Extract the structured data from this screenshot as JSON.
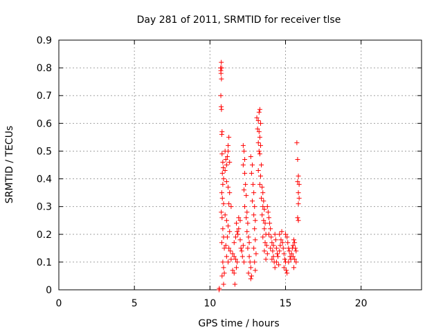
{
  "chart_data": {
    "type": "scatter",
    "title": "Day 281 of 2011, SRMTID for receiver tlse",
    "xlabel": "GPS time / hours",
    "ylabel": "SRMTID / TECUs",
    "xlim": [
      0,
      24
    ],
    "ylim": [
      0,
      0.9
    ],
    "xticks": [
      0,
      5,
      10,
      15,
      20
    ],
    "yticks": [
      0,
      0.1,
      0.2,
      0.3,
      0.4,
      0.5,
      0.6,
      0.7,
      0.8,
      0.9
    ],
    "grid": true,
    "marker": "+",
    "series": [
      {
        "name": "SRMTID",
        "color": "#ff0000",
        "points": [
          [
            10.6,
            0.0
          ],
          [
            10.62,
            0.005
          ],
          [
            10.7,
            0.8
          ],
          [
            10.72,
            0.79
          ],
          [
            10.75,
            0.82
          ],
          [
            10.78,
            0.8
          ],
          [
            10.73,
            0.78
          ],
          [
            10.76,
            0.76
          ],
          [
            10.72,
            0.7
          ],
          [
            10.74,
            0.66
          ],
          [
            10.76,
            0.65
          ],
          [
            10.8,
            0.57
          ],
          [
            10.78,
            0.56
          ],
          [
            10.8,
            0.49
          ],
          [
            10.85,
            0.46
          ],
          [
            10.88,
            0.44
          ],
          [
            10.82,
            0.42
          ],
          [
            10.9,
            0.4
          ],
          [
            10.85,
            0.38
          ],
          [
            10.78,
            0.35
          ],
          [
            10.82,
            0.33
          ],
          [
            10.9,
            0.31
          ],
          [
            10.75,
            0.28
          ],
          [
            10.8,
            0.26
          ],
          [
            10.85,
            0.22
          ],
          [
            10.9,
            0.19
          ],
          [
            10.78,
            0.17
          ],
          [
            10.95,
            0.15
          ],
          [
            10.85,
            0.1
          ],
          [
            10.9,
            0.08
          ],
          [
            10.95,
            0.06
          ],
          [
            10.8,
            0.05
          ],
          [
            10.9,
            0.02
          ],
          [
            11.0,
            0.5
          ],
          [
            11.05,
            0.47
          ],
          [
            11.1,
            0.45
          ],
          [
            11.0,
            0.43
          ],
          [
            11.15,
            0.48
          ],
          [
            11.2,
            0.52
          ],
          [
            11.25,
            0.55
          ],
          [
            11.2,
            0.5
          ],
          [
            11.3,
            0.46
          ],
          [
            11.1,
            0.39
          ],
          [
            11.2,
            0.37
          ],
          [
            11.3,
            0.35
          ],
          [
            11.25,
            0.31
          ],
          [
            11.4,
            0.3
          ],
          [
            11.0,
            0.27
          ],
          [
            11.1,
            0.25
          ],
          [
            11.2,
            0.23
          ],
          [
            11.3,
            0.21
          ],
          [
            11.15,
            0.19
          ],
          [
            11.05,
            0.16
          ],
          [
            11.25,
            0.15
          ],
          [
            11.35,
            0.14
          ],
          [
            11.1,
            0.12
          ],
          [
            11.2,
            0.1
          ],
          [
            11.4,
            0.11
          ],
          [
            11.5,
            0.13
          ],
          [
            11.6,
            0.12
          ],
          [
            11.7,
            0.11
          ],
          [
            11.5,
            0.07
          ],
          [
            11.6,
            0.06
          ],
          [
            11.65,
            0.02
          ],
          [
            11.8,
            0.1
          ],
          [
            11.75,
            0.08
          ],
          [
            11.6,
            0.17
          ],
          [
            11.7,
            0.19
          ],
          [
            11.8,
            0.21
          ],
          [
            11.9,
            0.22
          ],
          [
            11.75,
            0.24
          ],
          [
            11.9,
            0.26
          ],
          [
            12.0,
            0.25
          ],
          [
            11.85,
            0.2
          ],
          [
            12.0,
            0.18
          ],
          [
            12.05,
            0.15
          ],
          [
            12.1,
            0.14
          ],
          [
            12.2,
            0.16
          ],
          [
            12.15,
            0.12
          ],
          [
            12.25,
            0.1
          ],
          [
            12.2,
            0.52
          ],
          [
            12.25,
            0.5
          ],
          [
            12.3,
            0.47
          ],
          [
            12.2,
            0.45
          ],
          [
            12.3,
            0.42
          ],
          [
            12.35,
            0.38
          ],
          [
            12.25,
            0.36
          ],
          [
            12.4,
            0.34
          ],
          [
            12.3,
            0.3
          ],
          [
            12.45,
            0.28
          ],
          [
            12.4,
            0.26
          ],
          [
            12.5,
            0.24
          ],
          [
            12.45,
            0.21
          ],
          [
            12.55,
            0.19
          ],
          [
            12.6,
            0.17
          ],
          [
            12.5,
            0.15
          ],
          [
            12.6,
            0.12
          ],
          [
            12.65,
            0.1
          ],
          [
            12.7,
            0.08
          ],
          [
            12.55,
            0.06
          ],
          [
            12.7,
            0.04
          ],
          [
            12.75,
            0.05
          ],
          [
            12.7,
            0.48
          ],
          [
            12.8,
            0.45
          ],
          [
            12.75,
            0.42
          ],
          [
            12.85,
            0.38
          ],
          [
            12.9,
            0.35
          ],
          [
            12.8,
            0.32
          ],
          [
            12.95,
            0.3
          ],
          [
            12.9,
            0.27
          ],
          [
            13.0,
            0.25
          ],
          [
            12.95,
            0.22
          ],
          [
            13.0,
            0.18
          ],
          [
            12.9,
            0.15
          ],
          [
            13.05,
            0.13
          ],
          [
            12.95,
            0.1
          ],
          [
            13.0,
            0.07
          ],
          [
            13.1,
            0.62
          ],
          [
            13.2,
            0.61
          ],
          [
            13.25,
            0.64
          ],
          [
            13.3,
            0.65
          ],
          [
            13.35,
            0.6
          ],
          [
            13.15,
            0.58
          ],
          [
            13.25,
            0.57
          ],
          [
            13.3,
            0.55
          ],
          [
            13.2,
            0.53
          ],
          [
            13.35,
            0.52
          ],
          [
            13.25,
            0.5
          ],
          [
            13.3,
            0.49
          ],
          [
            13.4,
            0.45
          ],
          [
            13.2,
            0.43
          ],
          [
            13.35,
            0.41
          ],
          [
            13.3,
            0.38
          ],
          [
            13.45,
            0.37
          ],
          [
            13.5,
            0.35
          ],
          [
            13.4,
            0.33
          ],
          [
            13.55,
            0.32
          ],
          [
            13.5,
            0.3
          ],
          [
            13.6,
            0.29
          ],
          [
            13.45,
            0.27
          ],
          [
            13.55,
            0.25
          ],
          [
            13.65,
            0.24
          ],
          [
            13.6,
            0.22
          ],
          [
            13.7,
            0.2
          ],
          [
            13.5,
            0.19
          ],
          [
            13.65,
            0.17
          ],
          [
            13.75,
            0.16
          ],
          [
            13.6,
            0.14
          ],
          [
            13.8,
            0.13
          ],
          [
            13.7,
            0.11
          ],
          [
            13.8,
            0.3
          ],
          [
            13.85,
            0.28
          ],
          [
            13.9,
            0.26
          ],
          [
            13.95,
            0.24
          ],
          [
            14.0,
            0.22
          ],
          [
            13.9,
            0.2
          ],
          [
            14.05,
            0.19
          ],
          [
            14.1,
            0.17
          ],
          [
            14.0,
            0.15
          ],
          [
            14.15,
            0.14
          ],
          [
            14.2,
            0.12
          ],
          [
            14.1,
            0.11
          ],
          [
            14.25,
            0.1
          ],
          [
            14.3,
            0.08
          ],
          [
            14.2,
            0.16
          ],
          [
            14.3,
            0.2
          ],
          [
            14.35,
            0.18
          ],
          [
            14.4,
            0.15
          ],
          [
            14.45,
            0.13
          ],
          [
            14.5,
            0.12
          ],
          [
            14.4,
            0.1
          ],
          [
            14.55,
            0.09
          ],
          [
            14.6,
            0.14
          ],
          [
            14.65,
            0.16
          ],
          [
            14.7,
            0.18
          ],
          [
            14.6,
            0.2
          ],
          [
            14.75,
            0.21
          ],
          [
            14.8,
            0.17
          ],
          [
            14.85,
            0.15
          ],
          [
            14.9,
            0.13
          ],
          [
            14.95,
            0.11
          ],
          [
            15.0,
            0.1
          ],
          [
            14.9,
            0.08
          ],
          [
            15.05,
            0.07
          ],
          [
            15.1,
            0.06
          ],
          [
            15.0,
            0.2
          ],
          [
            15.1,
            0.19
          ],
          [
            15.15,
            0.17
          ],
          [
            15.2,
            0.15
          ],
          [
            15.25,
            0.14
          ],
          [
            15.3,
            0.12
          ],
          [
            15.2,
            0.1
          ],
          [
            15.35,
            0.11
          ],
          [
            15.4,
            0.13
          ],
          [
            15.45,
            0.15
          ],
          [
            15.5,
            0.16
          ],
          [
            15.55,
            0.18
          ],
          [
            15.6,
            0.17
          ],
          [
            15.65,
            0.15
          ],
          [
            15.7,
            0.14
          ],
          [
            15.5,
            0.12
          ],
          [
            15.6,
            0.11
          ],
          [
            15.7,
            0.1
          ],
          [
            15.55,
            0.08
          ],
          [
            15.75,
            0.53
          ],
          [
            15.8,
            0.47
          ],
          [
            15.85,
            0.41
          ],
          [
            15.8,
            0.39
          ],
          [
            15.9,
            0.38
          ],
          [
            15.85,
            0.35
          ],
          [
            15.9,
            0.33
          ],
          [
            15.85,
            0.31
          ],
          [
            15.8,
            0.26
          ],
          [
            15.85,
            0.25
          ]
        ]
      }
    ]
  }
}
